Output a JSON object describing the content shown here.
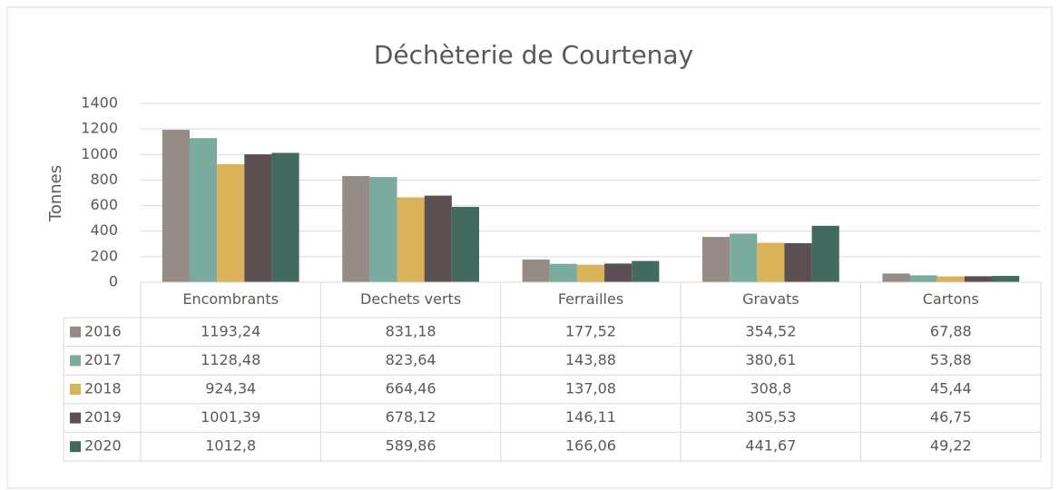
{
  "chart_data": {
    "type": "bar",
    "title": "Déchèterie de Courtenay",
    "y_label": "Tonnes",
    "categories": [
      "Encombrants",
      "Dechets verts",
      "Ferrailles",
      "Gravats",
      "Cartons"
    ],
    "series": [
      {
        "name": "2016",
        "color": "#958b87",
        "values": [
          1193.24,
          831.18,
          177.52,
          354.52,
          67.88
        ],
        "value_labels": [
          "1193,24",
          "831,18",
          "177,52",
          "354,52",
          "67,88"
        ]
      },
      {
        "name": "2017",
        "color": "#7aab9e",
        "values": [
          1128.48,
          823.64,
          143.88,
          380.61,
          53.88
        ],
        "value_labels": [
          "1128,48",
          "823,64",
          "143,88",
          "380,61",
          "53,88"
        ]
      },
      {
        "name": "2018",
        "color": "#d9b25a",
        "values": [
          924.34,
          664.46,
          137.08,
          308.8,
          45.44
        ],
        "value_labels": [
          "924,34",
          "664,46",
          "137,08",
          "308,8",
          "45,44"
        ]
      },
      {
        "name": "2019",
        "color": "#5b4f51",
        "values": [
          1001.39,
          678.12,
          146.11,
          305.53,
          46.75
        ],
        "value_labels": [
          "1001,39",
          "678,12",
          "146,11",
          "305,53",
          "46,75"
        ]
      },
      {
        "name": "2020",
        "color": "#426a5f",
        "values": [
          1012.8,
          589.86,
          166.06,
          441.67,
          49.22
        ],
        "value_labels": [
          "1012,8",
          "589,86",
          "166,06",
          "441,67",
          "49,22"
        ]
      }
    ],
    "ylim": [
      0,
      1400
    ],
    "yticks": [
      0,
      200,
      400,
      600,
      800,
      1000,
      1200,
      1400
    ],
    "grid": true
  }
}
